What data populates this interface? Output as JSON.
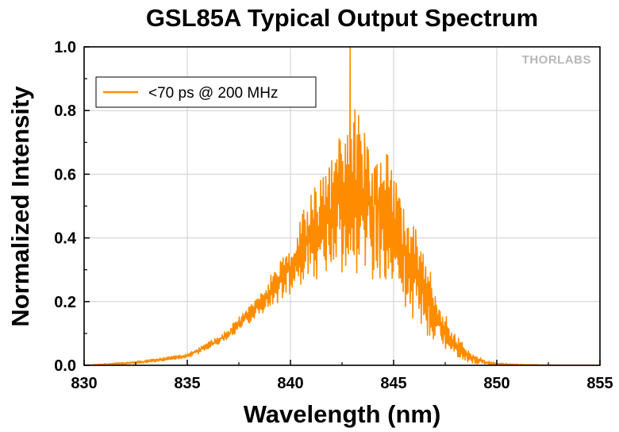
{
  "chart_data": {
    "type": "line",
    "title": "GSL85A Typical Output Spectrum",
    "xlabel": "Wavelength (nm)",
    "ylabel": "Normalized Intensity",
    "xlim": [
      830,
      855
    ],
    "ylim": [
      0.0,
      1.0
    ],
    "x_ticks": [
      "830",
      "835",
      "840",
      "845",
      "850",
      "855"
    ],
    "y_ticks": [
      "0.0",
      "0.2",
      "0.4",
      "0.6",
      "0.8",
      "1.0"
    ],
    "grid": true,
    "legend_position": "top-left",
    "logo_text": "THORLABS",
    "series": [
      {
        "name": "<70 ps @ 200 MHz",
        "color": "#ff8c00",
        "x": [
          830.0,
          831.0,
          832.0,
          833.0,
          834.0,
          835.0,
          835.5,
          836.0,
          836.5,
          837.0,
          837.5,
          838.0,
          838.5,
          839.0,
          839.5,
          840.0,
          840.5,
          841.0,
          841.5,
          842.0,
          842.5,
          842.9,
          843.5,
          844.0,
          844.5,
          845.0,
          845.5,
          846.0,
          846.5,
          847.0,
          847.5,
          848.0,
          848.5,
          849.0,
          849.5,
          850.0,
          851.0,
          852.0,
          853.0,
          854.0,
          855.0
        ],
        "y": [
          0.0,
          0.003,
          0.006,
          0.012,
          0.02,
          0.03,
          0.045,
          0.06,
          0.08,
          0.1,
          0.13,
          0.16,
          0.19,
          0.23,
          0.27,
          0.3,
          0.35,
          0.4,
          0.44,
          0.48,
          0.52,
          0.55,
          0.55,
          0.52,
          0.48,
          0.43,
          0.36,
          0.3,
          0.22,
          0.16,
          0.1,
          0.06,
          0.035,
          0.018,
          0.008,
          0.004,
          0.002,
          0.001,
          0.0,
          0.0,
          0.0
        ],
        "noise_amplitude": [
          0.0,
          0.003,
          0.004,
          0.005,
          0.006,
          0.008,
          0.01,
          0.012,
          0.015,
          0.02,
          0.025,
          0.03,
          0.04,
          0.05,
          0.07,
          0.09,
          0.12,
          0.15,
          0.18,
          0.21,
          0.24,
          0.27,
          0.27,
          0.25,
          0.23,
          0.2,
          0.18,
          0.16,
          0.13,
          0.1,
          0.07,
          0.04,
          0.025,
          0.015,
          0.008,
          0.004,
          0.002,
          0.001,
          0.0,
          0.0,
          0.0
        ],
        "peak": {
          "x": 842.9,
          "y": 1.0
        }
      }
    ]
  }
}
